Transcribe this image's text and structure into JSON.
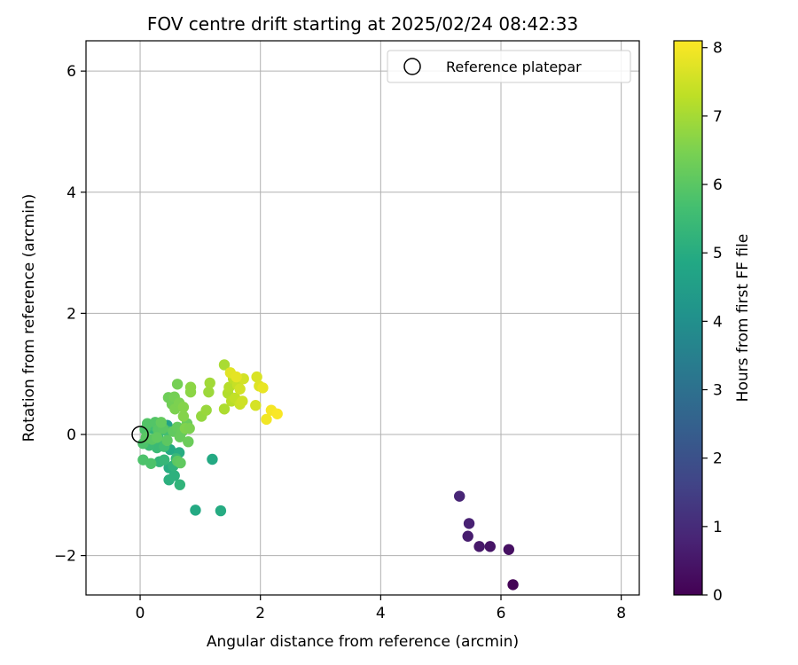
{
  "chart_data": {
    "type": "scatter",
    "title": "FOV centre drift starting at 2025/02/24 08:42:33",
    "xlabel": "Angular distance from reference (arcmin)",
    "ylabel": "Rotation from reference (arcmin)",
    "xlim": [
      -0.9,
      8.3
    ],
    "ylim": [
      -2.65,
      6.5
    ],
    "xticks": [
      0,
      2,
      4,
      6,
      8
    ],
    "yticks": [
      -2,
      0,
      2,
      4,
      6
    ],
    "xtick_labels": [
      "0",
      "2",
      "4",
      "6",
      "8"
    ],
    "ytick_labels": [
      "−2",
      "0",
      "2",
      "4",
      "6"
    ],
    "grid": true,
    "legend": {
      "placement": "top-right",
      "entries": [
        {
          "label": "Reference platepar",
          "marker": "open-circle"
        }
      ]
    },
    "reference_point": {
      "x": 0,
      "y": 0
    },
    "colorbar": {
      "label": "Hours from first FF file",
      "colormap": "viridis",
      "range": [
        0,
        8.1
      ],
      "ticks": [
        0,
        1,
        2,
        3,
        4,
        5,
        6,
        7,
        8
      ],
      "tick_labels": [
        "0",
        "1",
        "2",
        "3",
        "4",
        "5",
        "6",
        "7",
        "8"
      ]
    },
    "points": [
      {
        "x": 6.2,
        "y": -2.48,
        "c": 0.05
      },
      {
        "x": 6.13,
        "y": -1.9,
        "c": 0.35
      },
      {
        "x": 5.82,
        "y": -1.85,
        "c": 0.45
      },
      {
        "x": 5.64,
        "y": -1.85,
        "c": 0.55
      },
      {
        "x": 5.45,
        "y": -1.68,
        "c": 0.65
      },
      {
        "x": 5.47,
        "y": -1.47,
        "c": 0.75
      },
      {
        "x": 5.31,
        "y": -1.02,
        "c": 0.85
      },
      {
        "x": 0.92,
        "y": -1.25,
        "c": 4.9
      },
      {
        "x": 1.34,
        "y": -1.26,
        "c": 4.95
      },
      {
        "x": 1.2,
        "y": -0.41,
        "c": 4.9
      },
      {
        "x": 0.45,
        "y": 0.15,
        "c": 4.6
      },
      {
        "x": 0.5,
        "y": -0.25,
        "c": 4.9
      },
      {
        "x": 0.48,
        "y": -0.55,
        "c": 5.0
      },
      {
        "x": 0.48,
        "y": -0.75,
        "c": 5.1
      },
      {
        "x": 0.65,
        "y": -0.3,
        "c": 5.0
      },
      {
        "x": 0.57,
        "y": -0.68,
        "c": 5.15
      },
      {
        "x": 0.66,
        "y": -0.83,
        "c": 5.25
      },
      {
        "x": 0.55,
        "y": -0.52,
        "c": 5.2
      },
      {
        "x": 0.32,
        "y": -0.45,
        "c": 5.3
      },
      {
        "x": 0.4,
        "y": -0.42,
        "c": 5.35
      },
      {
        "x": 0.6,
        "y": -0.4,
        "c": 5.4
      },
      {
        "x": 0.2,
        "y": 0.1,
        "c": 5.3
      },
      {
        "x": 0.3,
        "y": 0.0,
        "c": 5.4
      },
      {
        "x": 0.35,
        "y": -0.12,
        "c": 5.5
      },
      {
        "x": 0.28,
        "y": -0.22,
        "c": 5.45
      },
      {
        "x": 0.15,
        "y": -0.18,
        "c": 5.5
      },
      {
        "x": 0.22,
        "y": 0.15,
        "c": 5.6
      },
      {
        "x": 0.4,
        "y": -0.2,
        "c": 5.6
      },
      {
        "x": 0.46,
        "y": 0.05,
        "c": 5.6
      },
      {
        "x": 0.05,
        "y": -0.42,
        "c": 5.8
      },
      {
        "x": 0.18,
        "y": -0.48,
        "c": 5.8
      },
      {
        "x": 0.05,
        "y": -0.15,
        "c": 5.8
      },
      {
        "x": 0.08,
        "y": 0.08,
        "c": 5.85
      },
      {
        "x": 0.12,
        "y": 0.18,
        "c": 5.9
      },
      {
        "x": 0.25,
        "y": 0.2,
        "c": 5.9
      },
      {
        "x": 0.3,
        "y": 0.08,
        "c": 5.95
      },
      {
        "x": 0.1,
        "y": -0.05,
        "c": 6.0
      },
      {
        "x": 0.2,
        "y": -0.08,
        "c": 6.0
      },
      {
        "x": 0.38,
        "y": 0.1,
        "c": 6.0
      },
      {
        "x": 0.45,
        "y": -0.1,
        "c": 6.05
      },
      {
        "x": 0.62,
        "y": -0.44,
        "c": 6.05
      },
      {
        "x": 0.67,
        "y": -0.47,
        "c": 6.1
      },
      {
        "x": 0.55,
        "y": 0.05,
        "c": 6.1
      },
      {
        "x": 0.62,
        "y": 0.12,
        "c": 6.15
      },
      {
        "x": 0.7,
        "y": 0.05,
        "c": 6.2
      },
      {
        "x": 0.66,
        "y": -0.04,
        "c": 6.2
      },
      {
        "x": 0.78,
        "y": 0.18,
        "c": 6.25
      },
      {
        "x": 0.8,
        "y": -0.12,
        "c": 6.25
      },
      {
        "x": 0.28,
        "y": -0.05,
        "c": 6.1
      },
      {
        "x": 0.35,
        "y": 0.2,
        "c": 6.15
      },
      {
        "x": 0.47,
        "y": 0.61,
        "c": 6.3
      },
      {
        "x": 0.53,
        "y": 0.5,
        "c": 6.35
      },
      {
        "x": 0.57,
        "y": 0.62,
        "c": 6.4
      },
      {
        "x": 0.62,
        "y": 0.83,
        "c": 6.4
      },
      {
        "x": 0.58,
        "y": 0.42,
        "c": 6.5
      },
      {
        "x": 0.65,
        "y": 0.52,
        "c": 6.5
      },
      {
        "x": 0.72,
        "y": 0.45,
        "c": 6.6
      },
      {
        "x": 0.72,
        "y": 0.3,
        "c": 6.6
      },
      {
        "x": 0.75,
        "y": 0.1,
        "c": 6.55
      },
      {
        "x": 0.82,
        "y": 0.1,
        "c": 6.5
      },
      {
        "x": 0.84,
        "y": 0.7,
        "c": 6.7
      },
      {
        "x": 0.84,
        "y": 0.78,
        "c": 6.7
      },
      {
        "x": 1.02,
        "y": 0.3,
        "c": 6.8
      },
      {
        "x": 1.1,
        "y": 0.4,
        "c": 6.85
      },
      {
        "x": 1.14,
        "y": 0.7,
        "c": 6.9
      },
      {
        "x": 1.16,
        "y": 0.85,
        "c": 6.95
      },
      {
        "x": 1.4,
        "y": 1.15,
        "c": 7.05
      },
      {
        "x": 1.4,
        "y": 0.42,
        "c": 7.1
      },
      {
        "x": 1.46,
        "y": 0.68,
        "c": 7.15
      },
      {
        "x": 1.48,
        "y": 0.78,
        "c": 7.2
      },
      {
        "x": 1.52,
        "y": 0.55,
        "c": 7.25
      },
      {
        "x": 1.55,
        "y": 0.92,
        "c": 7.3
      },
      {
        "x": 1.58,
        "y": 0.6,
        "c": 7.35
      },
      {
        "x": 1.62,
        "y": 0.82,
        "c": 7.4
      },
      {
        "x": 1.66,
        "y": 0.5,
        "c": 7.45
      },
      {
        "x": 1.7,
        "y": 0.55,
        "c": 7.5
      },
      {
        "x": 1.72,
        "y": 0.92,
        "c": 7.55
      },
      {
        "x": 1.66,
        "y": 0.75,
        "c": 7.55
      },
      {
        "x": 1.92,
        "y": 0.48,
        "c": 7.6
      },
      {
        "x": 1.94,
        "y": 0.95,
        "c": 7.65
      },
      {
        "x": 1.98,
        "y": 0.8,
        "c": 7.7
      },
      {
        "x": 1.5,
        "y": 1.02,
        "c": 7.75
      },
      {
        "x": 1.6,
        "y": 0.95,
        "c": 7.8
      },
      {
        "x": 2.04,
        "y": 0.77,
        "c": 7.85
      },
      {
        "x": 2.1,
        "y": 0.25,
        "c": 7.95
      },
      {
        "x": 2.18,
        "y": 0.4,
        "c": 8.0
      },
      {
        "x": 2.28,
        "y": 0.34,
        "c": 8.05
      }
    ]
  }
}
